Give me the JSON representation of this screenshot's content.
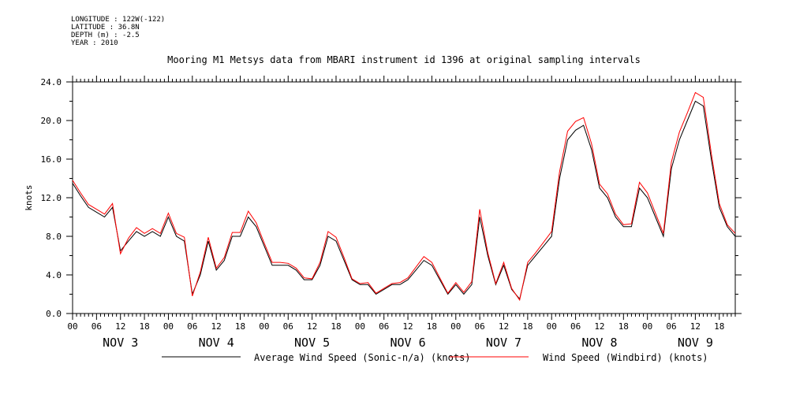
{
  "metadata": {
    "longitude": "LONGITUDE : 122W(-122)",
    "latitude": "LATITUDE : 36.8N",
    "depth": "DEPTH (m) : -2.5",
    "year": "YEAR : 2010"
  },
  "chart_data": {
    "type": "line",
    "title": "Mooring M1 Metsys data from MBARI instrument id 1396 at original sampling intervals",
    "ylabel": "knots",
    "xlabel": "",
    "ylim": [
      0,
      24
    ],
    "yticks": [
      "0.0",
      "4.0",
      "8.0",
      "12.0",
      "16.0",
      "20.0",
      "24.0"
    ],
    "xlim_hours": [
      0,
      166
    ],
    "hour_tick_labels": [
      "00",
      "06",
      "12",
      "18",
      "00",
      "06",
      "12",
      "18",
      "00",
      "06",
      "12",
      "18",
      "00",
      "06",
      "12",
      "18",
      "00",
      "06",
      "12",
      "18",
      "00",
      "06",
      "12",
      "18",
      "00",
      "06",
      "12",
      "18"
    ],
    "day_labels": [
      "NOV  3",
      "NOV  4",
      "NOV  5",
      "NOV  6",
      "NOV  7",
      "NOV  8",
      "NOV  9"
    ],
    "grid": false,
    "legend_position": "bottom",
    "series": [
      {
        "name": "Average Wind Speed (Sonic-n/a) (knots)",
        "color": "#000000",
        "x_hours": [
          0,
          2,
          4,
          6,
          8,
          10,
          12,
          14,
          16,
          18,
          20,
          22,
          24,
          26,
          28,
          30,
          32,
          34,
          36,
          38,
          40,
          42,
          44,
          46,
          48,
          50,
          52,
          54,
          56,
          58,
          60,
          62,
          64,
          66,
          68,
          70,
          72,
          74,
          76,
          78,
          80,
          82,
          84,
          86,
          88,
          90,
          92,
          94,
          96,
          98,
          100,
          102,
          104,
          106,
          108,
          110,
          112,
          114,
          116,
          118,
          120,
          122,
          124,
          126,
          128,
          130,
          132,
          134,
          136,
          138,
          140,
          142,
          144,
          146,
          148,
          150,
          152,
          154,
          156,
          158,
          160,
          162,
          164,
          166
        ],
        "values": [
          13.5,
          12.2,
          11,
          10.5,
          10,
          11,
          6.5,
          7.5,
          8.5,
          8,
          8.5,
          8,
          10,
          8,
          7.5,
          2,
          4,
          7.5,
          4.5,
          5.5,
          8,
          8,
          10,
          9,
          7,
          5,
          5,
          5,
          4.5,
          3.5,
          3.5,
          5,
          8,
          7.5,
          5.5,
          3.5,
          3,
          3,
          2,
          2.5,
          3,
          3,
          3.5,
          4.5,
          5.5,
          5,
          3.5,
          2,
          3,
          2,
          3,
          10,
          6,
          3,
          5,
          2.5,
          1.5,
          5,
          6,
          7,
          8,
          14,
          18,
          19,
          19.5,
          17,
          13,
          12,
          10,
          9,
          9,
          13,
          12,
          10,
          8,
          15,
          18,
          20,
          22,
          21.5,
          16,
          11,
          9,
          8
        ]
      },
      {
        "name": "Wind Speed (Windbird) (knots)",
        "color": "#ff0000",
        "x_hours": [
          0,
          2,
          4,
          6,
          8,
          10,
          12,
          14,
          16,
          18,
          20,
          22,
          24,
          26,
          28,
          30,
          32,
          34,
          36,
          38,
          40,
          42,
          44,
          46,
          48,
          50,
          52,
          54,
          56,
          58,
          60,
          62,
          64,
          66,
          68,
          70,
          72,
          74,
          76,
          78,
          80,
          82,
          84,
          86,
          88,
          90,
          92,
          94,
          96,
          98,
          100,
          102,
          104,
          106,
          108,
          110,
          112,
          114,
          116,
          118,
          120,
          122,
          124,
          126,
          128,
          130,
          132,
          134,
          136,
          138,
          140,
          142,
          144,
          146,
          148,
          150,
          152,
          154,
          156,
          158,
          160,
          162,
          164,
          166
        ],
        "values": [
          13.8,
          12.5,
          11.3,
          10.8,
          10.3,
          11.4,
          6.2,
          7.8,
          8.9,
          8.3,
          8.8,
          8.3,
          10.4,
          8.3,
          7.9,
          1.8,
          4.3,
          7.9,
          4.7,
          5.8,
          8.4,
          8.4,
          10.6,
          9.4,
          7.3,
          5.3,
          5.3,
          5.2,
          4.7,
          3.7,
          3.6,
          5.3,
          8.5,
          7.9,
          5.8,
          3.6,
          3.1,
          3.2,
          2.1,
          2.6,
          3.1,
          3.2,
          3.7,
          4.8,
          5.9,
          5.3,
          3.7,
          2.1,
          3.2,
          2.2,
          3.3,
          10.8,
          6.3,
          3.1,
          5.3,
          2.6,
          1.4,
          5.3,
          6.3,
          7.4,
          8.5,
          14.7,
          18.9,
          19.9,
          20.3,
          17.6,
          13.4,
          12.4,
          10.3,
          9.2,
          9.3,
          13.6,
          12.5,
          10.4,
          8.3,
          15.7,
          18.8,
          20.8,
          22.9,
          22.4,
          16.6,
          11.4,
          9.2,
          8.3
        ]
      }
    ]
  }
}
